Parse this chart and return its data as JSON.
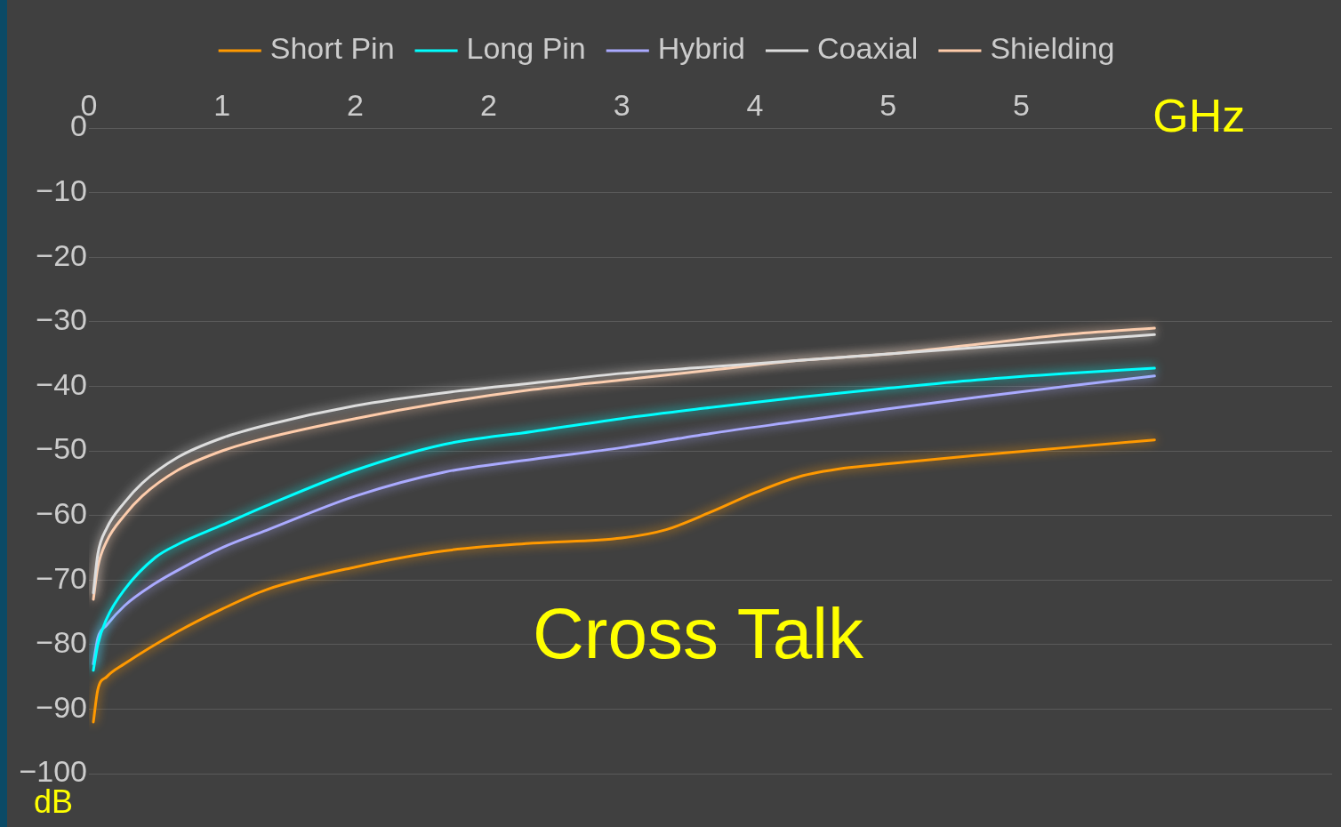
{
  "chart_data": {
    "type": "line",
    "title": "Cross Talk",
    "xlabel": "GHz",
    "ylabel": "dB",
    "xlim": [
      0,
      7
    ],
    "xticks": [
      0,
      {
        "value": 0.75,
        "label": "1"
      },
      {
        "value": 1.5,
        "label": "2"
      },
      {
        "value": 2.25,
        "label": "2"
      },
      3,
      {
        "value": 3.75,
        "label": "4"
      },
      {
        "value": 4.5,
        "label": "5"
      },
      {
        "value": 5.25,
        "label": "5"
      }
    ],
    "ylim": [
      -100,
      0
    ],
    "yticks": [
      -100,
      -90,
      -80,
      -70,
      -60,
      -50,
      -40,
      -30,
      -20,
      -10,
      0
    ],
    "grid": "y",
    "legend": "top",
    "marker": "none",
    "line_style": "solid",
    "series": [
      {
        "name": "Short Pin",
        "color": "#ff9900",
        "x": [
          0.025,
          0.05,
          0.1,
          0.2,
          0.5,
          0.75,
          1,
          1.5,
          2,
          2.5,
          3,
          3.25,
          3.5,
          3.75,
          4,
          4.25,
          4.5,
          5,
          5.5,
          6
        ],
        "values": [
          -92,
          -87,
          -85,
          -83,
          -78,
          -74.5,
          -71.5,
          -68,
          -65.5,
          -64.3,
          -63.5,
          -62.2,
          -59.5,
          -56.5,
          -54,
          -52.7,
          -52,
          -50.7,
          -49.5,
          -48.3
        ]
      },
      {
        "name": "Long Pin",
        "color": "#00ffff",
        "x": [
          0.025,
          0.05,
          0.1,
          0.2,
          0.375,
          0.5,
          0.75,
          1,
          1.5,
          2,
          2.5,
          3,
          3.5,
          4,
          4.5,
          5,
          5.5,
          6
        ],
        "values": [
          -84,
          -80,
          -76,
          -71.5,
          -66.5,
          -64.5,
          -61.5,
          -58.5,
          -53,
          -49,
          -47,
          -45,
          -43.3,
          -41.7,
          -40.3,
          -39,
          -38,
          -37.2
        ]
      },
      {
        "name": "Hybrid",
        "color": "#aaaaff",
        "x": [
          0.025,
          0.05,
          0.1,
          0.2,
          0.375,
          0.5,
          0.75,
          1,
          1.5,
          2,
          2.5,
          3,
          3.5,
          4,
          4.5,
          5,
          5.5,
          6
        ],
        "values": [
          -83,
          -79,
          -77,
          -74,
          -70.5,
          -68.5,
          -65,
          -62.3,
          -57,
          -53.3,
          -51.3,
          -49.5,
          -47.3,
          -45.4,
          -43.5,
          -41.7,
          -40,
          -38.4
        ]
      },
      {
        "name": "Coaxial",
        "color": "#dddddd",
        "x": [
          0.025,
          0.05,
          0.1,
          0.2,
          0.3,
          0.5,
          0.75,
          1,
          1.5,
          2,
          2.5,
          3,
          3.5,
          4,
          4.5,
          5,
          5.5,
          6
        ],
        "values": [
          -72,
          -66,
          -62,
          -58,
          -55,
          -51,
          -48,
          -46,
          -43,
          -41,
          -39.5,
          -38,
          -37,
          -36,
          -35,
          -34,
          -33,
          -32
        ]
      },
      {
        "name": "Shielding",
        "color": "#ffccaa",
        "x": [
          0.025,
          0.05,
          0.1,
          0.2,
          0.3,
          0.5,
          0.75,
          1,
          1.5,
          2,
          2.5,
          3,
          3.5,
          4,
          4.5,
          5,
          5.5,
          6
        ],
        "values": [
          -73,
          -68,
          -64,
          -60,
          -57,
          -53,
          -50,
          -48,
          -45,
          -42.5,
          -40.5,
          -39,
          -37.5,
          -36,
          -35,
          -33.5,
          -32,
          -31
        ]
      }
    ]
  }
}
